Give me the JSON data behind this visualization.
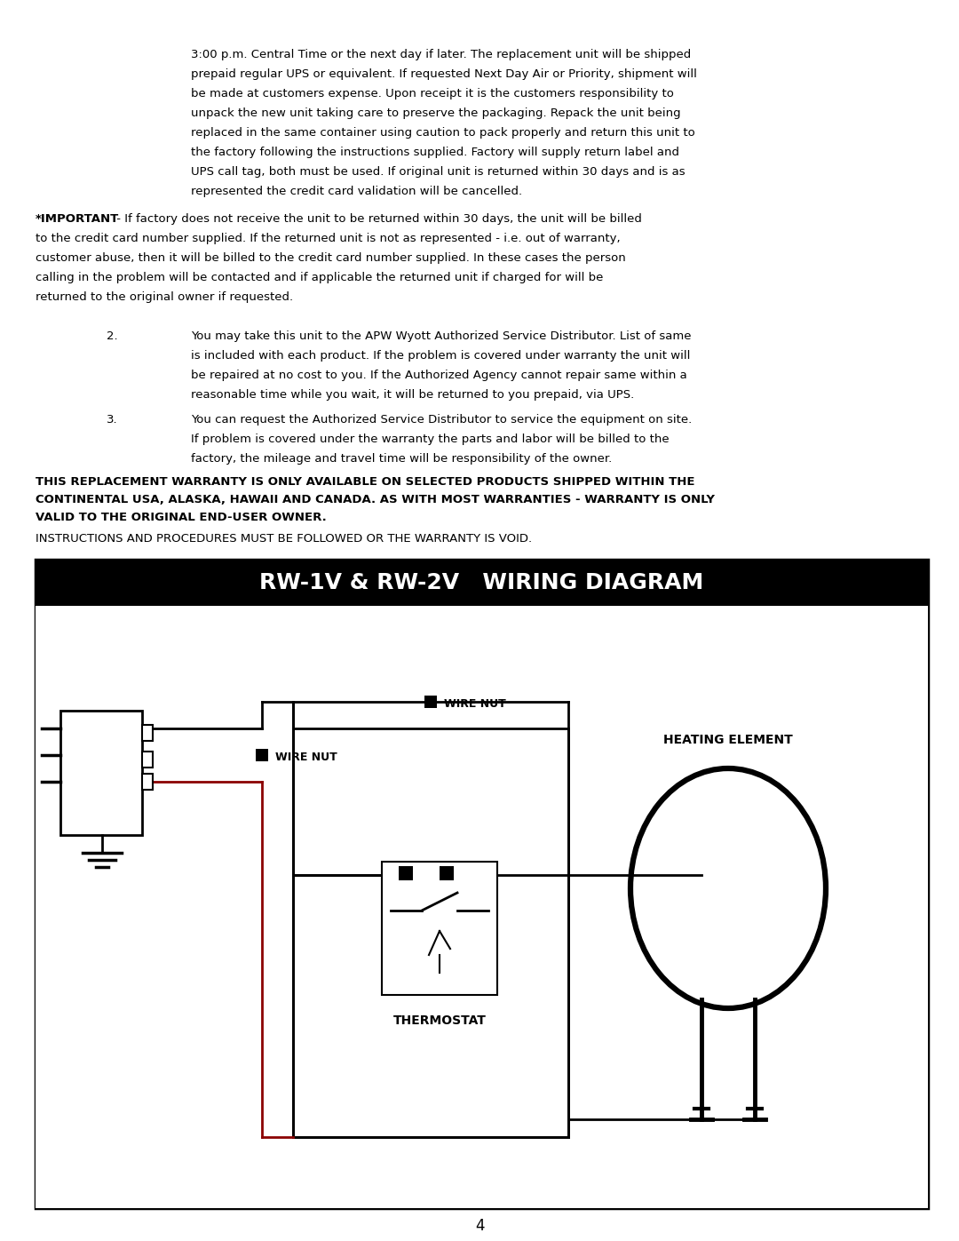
{
  "page_bg": "#ffffff",
  "text_color": "#000000",
  "title_bar_bg": "#000000",
  "title_bar_text": "#ffffff",
  "title_text": "RW-1V & RW-2V   WIRING DIAGRAM",
  "page_number": "4",
  "paragraph1": "3:00 p.m. Central Time or the next day if later. The replacement unit will be shipped\nprepaid regular UPS or equivalent. If requested Next Day Air or Priority, shipment will\nbe made at customers expense. Upon receipt it is the customers responsibility to\nunpack the new unit taking care to preserve the packaging. Repack the unit being\nreplaced in the same container using caution to pack properly and return this unit to\nthe factory following the instructions supplied. Factory will supply return label and\nUPS call tag, both must be used. If original unit is returned within 30 days and is as\nrepresented the credit card validation will be cancelled.",
  "important_text": "*IMPORTANT - If factory does not receive the unit to be returned within 30 days, the unit will be billed\nto the credit card number supplied. If the returned unit is not as represented - i.e. out of warranty,\ncustomer abuse, then it will be billed to the credit card number supplied. In these cases the person\ncalling in the problem will be contacted and if applicable the returned unit if charged for will be\nreturned to the original owner if requested.",
  "item2_text": "You may take this unit to the APW Wyott Authorized Service Distributor. List of same\nis included with each product. If the problem is covered under warranty the unit will\nbe repaired at no cost to you. If the Authorized Agency cannot repair same within a\nreasonable time while you wait, it will be returned to you prepaid, via UPS.",
  "item3_text": "You can request the Authorized Service Distributor to service the equipment on site.\nIf problem is covered under the warranty the parts and labor will be billed to the\nfactory, the mileage and travel time will be responsibility of the owner.",
  "bold_text": "THIS REPLACEMENT WARRANTY IS ONLY AVAILABLE ON SELECTED PRODUCTS SHIPPED WITHIN THE\nCONTINENTAL USA, ALASKA, HAWAII AND CANADA. AS WITH MOST WARRANTIES - WARRANTY IS ONLY\nVALID TO THE ORIGINAL END-USER OWNER.",
  "instruction_text": "INSTRUCTIONS AND PROCEDURES MUST BE FOLLOWED OR THE WARRANTY IS VOID.",
  "wire_nut1_label": "WIRE NUT",
  "wire_nut2_label": "WIRE NUT",
  "thermostat_label": "THERMOSTAT",
  "heating_element_label": "HEATING ELEMENT"
}
